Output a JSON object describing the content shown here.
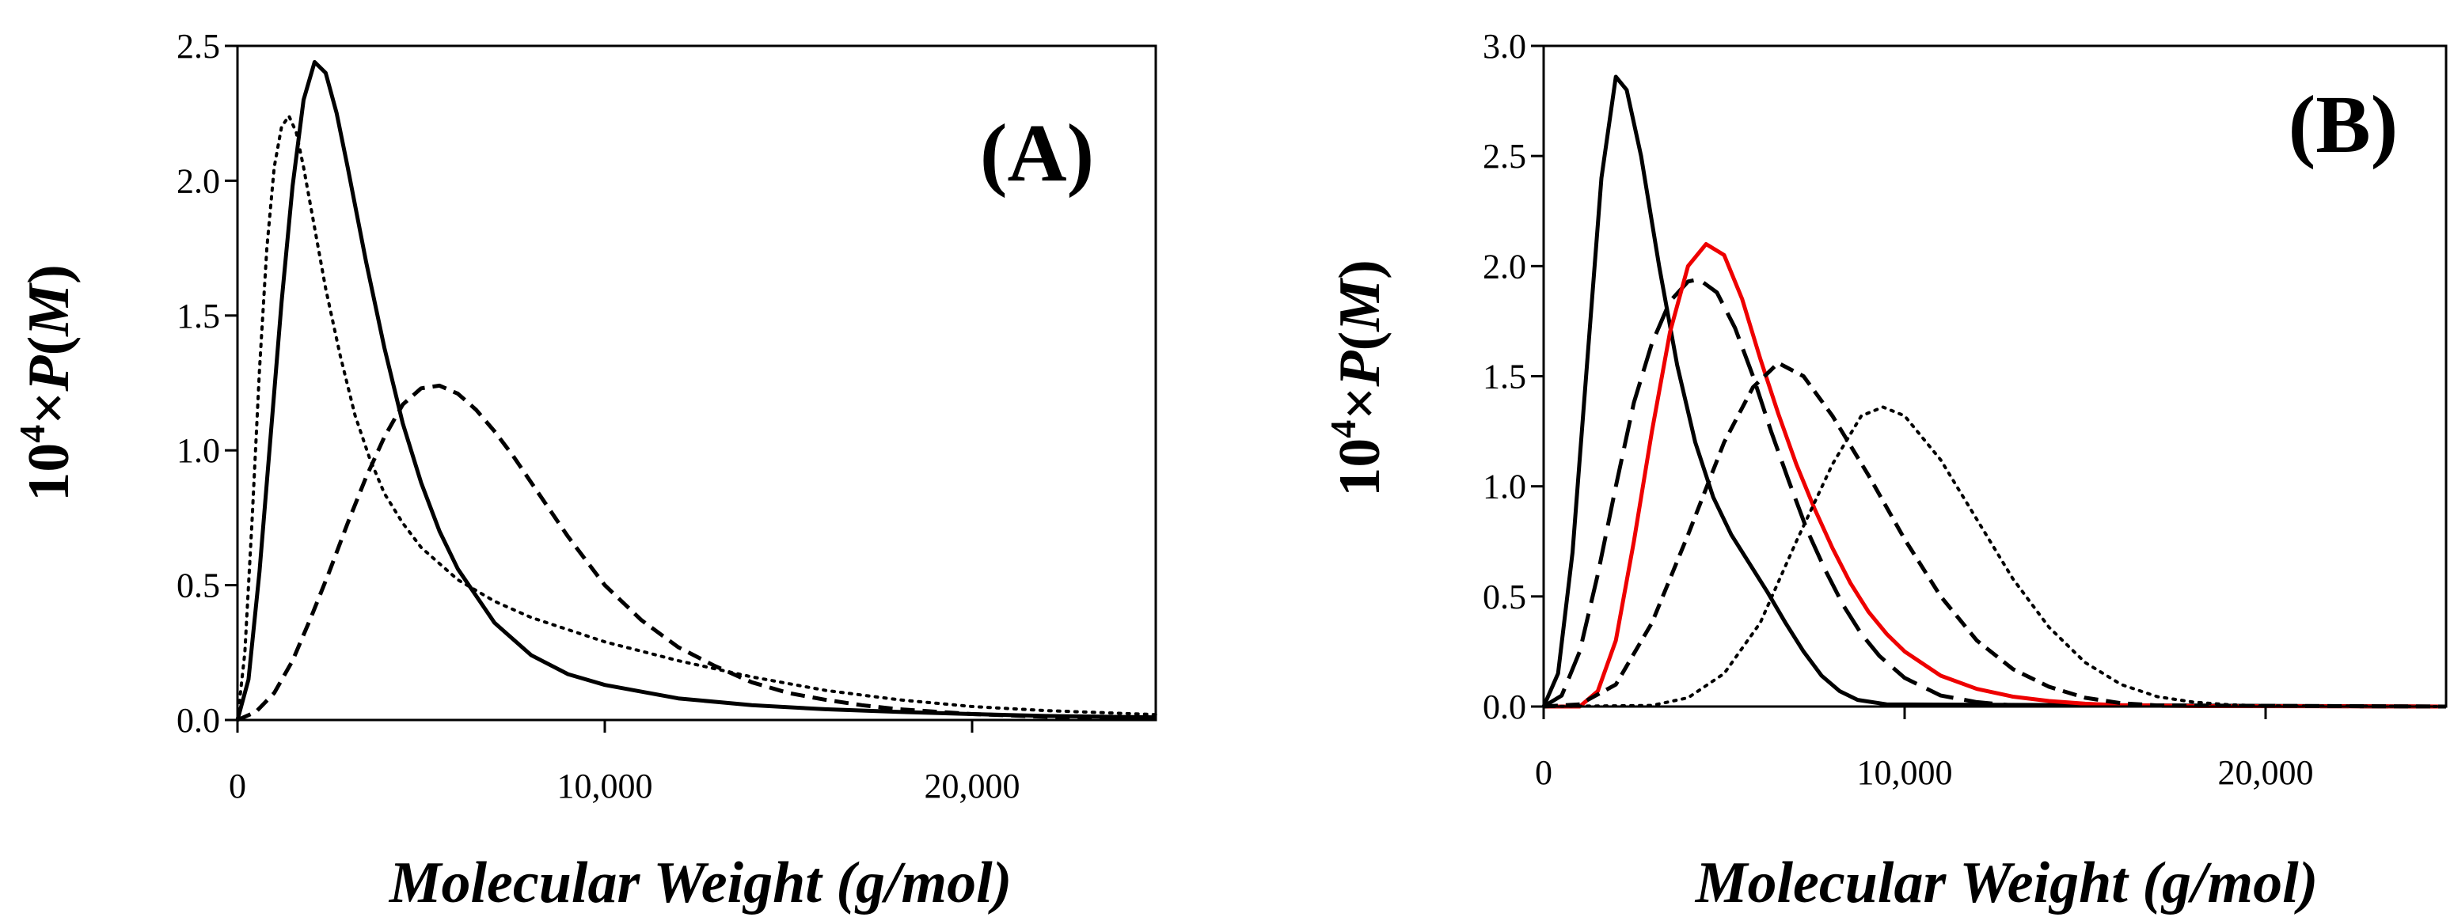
{
  "chart_data": [
    {
      "panel_label": "(A)",
      "type": "line",
      "xlabel": "Molecular Weight (g/mol)",
      "ylabel": {
        "prefix": "10",
        "superscript": "4",
        "middle": "×",
        "italic": "P",
        "open": "(",
        "italic2": "M",
        "close": ")"
      },
      "xlim": [
        0,
        25000
      ],
      "ylim": [
        0,
        2.5
      ],
      "xticks": [
        0,
        10000,
        20000
      ],
      "xtick_labels": [
        "0",
        "10,000",
        "20,000"
      ],
      "yticks": [
        0,
        0.5,
        1.0,
        1.5,
        2.0,
        2.5
      ],
      "ytick_labels": [
        "0.0",
        "0.5",
        "1.0",
        "1.5",
        "2.0",
        "2.5"
      ],
      "grid": false,
      "series": [
        {
          "style": "solid",
          "color": "#000000",
          "points": [
            [
              0,
              0
            ],
            [
              300,
              0.15
            ],
            [
              600,
              0.55
            ],
            [
              900,
              1.05
            ],
            [
              1200,
              1.55
            ],
            [
              1500,
              1.98
            ],
            [
              1800,
              2.3
            ],
            [
              2100,
              2.44
            ],
            [
              2400,
              2.4
            ],
            [
              2700,
              2.25
            ],
            [
              3000,
              2.05
            ],
            [
              3500,
              1.7
            ],
            [
              4000,
              1.38
            ],
            [
              4500,
              1.1
            ],
            [
              5000,
              0.88
            ],
            [
              5500,
              0.7
            ],
            [
              6000,
              0.56
            ],
            [
              7000,
              0.36
            ],
            [
              8000,
              0.24
            ],
            [
              9000,
              0.17
            ],
            [
              10000,
              0.13
            ],
            [
              12000,
              0.08
            ],
            [
              14000,
              0.055
            ],
            [
              16000,
              0.04
            ],
            [
              18000,
              0.03
            ],
            [
              20000,
              0.022
            ],
            [
              22000,
              0.015
            ],
            [
              25000,
              0.01
            ]
          ]
        },
        {
          "style": "dotted",
          "color": "#000000",
          "points": [
            [
              0,
              0
            ],
            [
              200,
              0.25
            ],
            [
              400,
              0.75
            ],
            [
              600,
              1.3
            ],
            [
              800,
              1.75
            ],
            [
              1000,
              2.05
            ],
            [
              1200,
              2.2
            ],
            [
              1400,
              2.24
            ],
            [
              1600,
              2.18
            ],
            [
              1800,
              2.05
            ],
            [
              2000,
              1.9
            ],
            [
              2400,
              1.6
            ],
            [
              2800,
              1.35
            ],
            [
              3200,
              1.13
            ],
            [
              3600,
              0.97
            ],
            [
              4000,
              0.84
            ],
            [
              4500,
              0.73
            ],
            [
              5000,
              0.64
            ],
            [
              6000,
              0.52
            ],
            [
              7000,
              0.44
            ],
            [
              8000,
              0.38
            ],
            [
              10000,
              0.29
            ],
            [
              12000,
              0.22
            ],
            [
              14000,
              0.16
            ],
            [
              16000,
              0.11
            ],
            [
              18000,
              0.075
            ],
            [
              20000,
              0.05
            ],
            [
              22000,
              0.035
            ],
            [
              25000,
              0.02
            ]
          ]
        },
        {
          "style": "dashed",
          "color": "#000000",
          "points": [
            [
              0,
              0
            ],
            [
              500,
              0.03
            ],
            [
              1000,
              0.1
            ],
            [
              1500,
              0.22
            ],
            [
              2000,
              0.38
            ],
            [
              2500,
              0.55
            ],
            [
              3000,
              0.73
            ],
            [
              3500,
              0.9
            ],
            [
              4000,
              1.05
            ],
            [
              4500,
              1.17
            ],
            [
              5000,
              1.23
            ],
            [
              5500,
              1.24
            ],
            [
              6000,
              1.21
            ],
            [
              6500,
              1.15
            ],
            [
              7000,
              1.07
            ],
            [
              7500,
              0.98
            ],
            [
              8000,
              0.88
            ],
            [
              8500,
              0.78
            ],
            [
              9000,
              0.68
            ],
            [
              10000,
              0.5
            ],
            [
              11000,
              0.37
            ],
            [
              12000,
              0.27
            ],
            [
              13000,
              0.2
            ],
            [
              14000,
              0.14
            ],
            [
              15000,
              0.1
            ],
            [
              16000,
              0.075
            ],
            [
              17000,
              0.055
            ],
            [
              18000,
              0.04
            ],
            [
              20000,
              0.022
            ],
            [
              22000,
              0.012
            ],
            [
              25000,
              0.005
            ]
          ]
        }
      ]
    },
    {
      "panel_label": "(B)",
      "type": "line",
      "xlabel": "Molecular Weight (g/mol)",
      "ylabel": {
        "prefix": "10",
        "superscript": "4",
        "middle": "×",
        "italic": "P",
        "open": "(",
        "italic2": "M",
        "close": ")"
      },
      "xlim": [
        0,
        25000
      ],
      "ylim": [
        0,
        3.0
      ],
      "xticks": [
        0,
        10000,
        20000
      ],
      "xtick_labels": [
        "0",
        "10,000",
        "20,000"
      ],
      "yticks": [
        0,
        0.5,
        1.0,
        1.5,
        2.0,
        2.5,
        3.0
      ],
      "ytick_labels": [
        "0.0",
        "0.5",
        "1.0",
        "1.5",
        "2.0",
        "2.5",
        "3.0"
      ],
      "grid": false,
      "series": [
        {
          "style": "solid",
          "color": "#000000",
          "points": [
            [
              0,
              0
            ],
            [
              400,
              0.15
            ],
            [
              800,
              0.7
            ],
            [
              1200,
              1.55
            ],
            [
              1600,
              2.4
            ],
            [
              2000,
              2.86
            ],
            [
              2300,
              2.8
            ],
            [
              2700,
              2.5
            ],
            [
              3200,
              2.0
            ],
            [
              3700,
              1.55
            ],
            [
              4200,
              1.2
            ],
            [
              4700,
              0.95
            ],
            [
              5200,
              0.78
            ],
            [
              5700,
              0.65
            ],
            [
              6200,
              0.52
            ],
            [
              6700,
              0.38
            ],
            [
              7200,
              0.25
            ],
            [
              7700,
              0.14
            ],
            [
              8200,
              0.07
            ],
            [
              8700,
              0.03
            ],
            [
              9500,
              0.01
            ],
            [
              25000,
              0
            ]
          ]
        },
        {
          "style": "longdash",
          "color": "#000000",
          "points": [
            [
              0,
              0
            ],
            [
              500,
              0.05
            ],
            [
              1000,
              0.25
            ],
            [
              1500,
              0.6
            ],
            [
              2000,
              1.0
            ],
            [
              2500,
              1.38
            ],
            [
              3000,
              1.65
            ],
            [
              3500,
              1.84
            ],
            [
              4000,
              1.93
            ],
            [
              4300,
              1.94
            ],
            [
              4800,
              1.88
            ],
            [
              5300,
              1.72
            ],
            [
              5800,
              1.5
            ],
            [
              6300,
              1.25
            ],
            [
              6800,
              1.02
            ],
            [
              7300,
              0.8
            ],
            [
              7800,
              0.62
            ],
            [
              8300,
              0.46
            ],
            [
              8800,
              0.33
            ],
            [
              9300,
              0.23
            ],
            [
              10000,
              0.13
            ],
            [
              11000,
              0.05
            ],
            [
              12000,
              0.02
            ],
            [
              13000,
              0.005
            ],
            [
              25000,
              0
            ]
          ]
        },
        {
          "style": "solid",
          "color": "#ee0000",
          "points": [
            [
              0,
              0
            ],
            [
              1000,
              0.0
            ],
            [
              1500,
              0.07
            ],
            [
              2000,
              0.3
            ],
            [
              2500,
              0.75
            ],
            [
              3000,
              1.25
            ],
            [
              3500,
              1.7
            ],
            [
              4000,
              2.0
            ],
            [
              4500,
              2.1
            ],
            [
              5000,
              2.05
            ],
            [
              5500,
              1.85
            ],
            [
              6000,
              1.58
            ],
            [
              6500,
              1.33
            ],
            [
              7000,
              1.1
            ],
            [
              7500,
              0.9
            ],
            [
              8000,
              0.72
            ],
            [
              8500,
              0.56
            ],
            [
              9000,
              0.43
            ],
            [
              9500,
              0.33
            ],
            [
              10000,
              0.25
            ],
            [
              11000,
              0.14
            ],
            [
              12000,
              0.08
            ],
            [
              13000,
              0.045
            ],
            [
              14000,
              0.025
            ],
            [
              15000,
              0.013
            ],
            [
              16000,
              0.006
            ],
            [
              18000,
              0.002
            ],
            [
              25000,
              0
            ]
          ]
        },
        {
          "style": "dashed",
          "color": "#000000",
          "points": [
            [
              0,
              0
            ],
            [
              1000,
              0.01
            ],
            [
              2000,
              0.1
            ],
            [
              3000,
              0.38
            ],
            [
              4000,
              0.78
            ],
            [
              5000,
              1.2
            ],
            [
              5800,
              1.45
            ],
            [
              6500,
              1.56
            ],
            [
              7200,
              1.5
            ],
            [
              8000,
              1.32
            ],
            [
              9000,
              1.05
            ],
            [
              10000,
              0.76
            ],
            [
              11000,
              0.5
            ],
            [
              12000,
              0.3
            ],
            [
              13000,
              0.17
            ],
            [
              14000,
              0.09
            ],
            [
              15000,
              0.04
            ],
            [
              16000,
              0.015
            ],
            [
              17000,
              0.005
            ],
            [
              25000,
              0
            ]
          ]
        },
        {
          "style": "dotted",
          "color": "#000000",
          "points": [
            [
              0,
              0
            ],
            [
              3000,
              0.005
            ],
            [
              4000,
              0.04
            ],
            [
              5000,
              0.15
            ],
            [
              6000,
              0.38
            ],
            [
              7000,
              0.75
            ],
            [
              8000,
              1.1
            ],
            [
              8800,
              1.32
            ],
            [
              9400,
              1.36
            ],
            [
              10000,
              1.32
            ],
            [
              11000,
              1.12
            ],
            [
              12000,
              0.85
            ],
            [
              13000,
              0.58
            ],
            [
              14000,
              0.36
            ],
            [
              15000,
              0.2
            ],
            [
              16000,
              0.1
            ],
            [
              17000,
              0.045
            ],
            [
              18000,
              0.02
            ],
            [
              19000,
              0.008
            ],
            [
              20000,
              0.003
            ],
            [
              25000,
              0
            ]
          ]
        }
      ]
    }
  ]
}
